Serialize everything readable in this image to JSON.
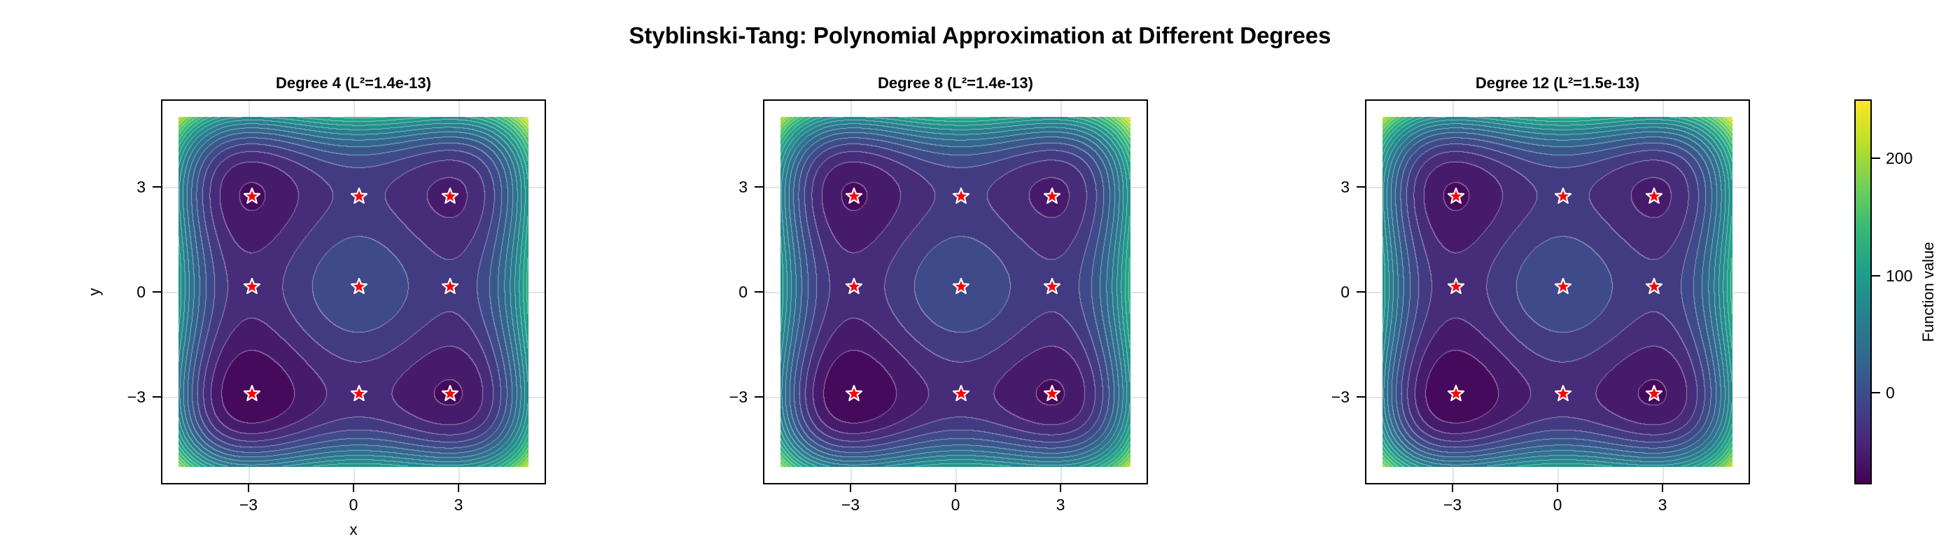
{
  "title": "Styblinski-Tang: Polynomial Approximation at Different Degrees",
  "chart_data": {
    "type": "heatmap",
    "subtype": "filled-contour",
    "title": "Styblinski-Tang: Polynomial Approximation at Different Degrees",
    "function": "f(x,y) = 0.5*((x^4 - 16x^2 + 5x) + (y^4 - 16y^2 + 5y))",
    "domain": {
      "x": [
        -5,
        5
      ],
      "y": [
        -5,
        5
      ]
    },
    "xlim": [
      -5.5,
      5.5
    ],
    "ylim": [
      -5.5,
      5.5
    ],
    "grid": true,
    "contour_levels": 20,
    "colormap": "viridis",
    "colorbar": {
      "label": "Function value",
      "range": [
        -78.3,
        250
      ],
      "ticks": [
        0,
        100,
        200
      ],
      "tick_labels": [
        "0",
        "100",
        "200"
      ]
    },
    "critical_points": {
      "marker": "star",
      "color": "#ff0000",
      "edge_color": "#ffffff",
      "points": [
        [
          -2.9,
          2.75
        ],
        [
          0.16,
          2.75
        ],
        [
          2.75,
          2.75
        ],
        [
          -2.9,
          0.16
        ],
        [
          0.16,
          0.16
        ],
        [
          2.75,
          0.16
        ],
        [
          -2.9,
          -2.9
        ],
        [
          0.16,
          -2.9
        ],
        [
          2.75,
          -2.9
        ]
      ]
    },
    "panels": [
      {
        "degree": 4,
        "title": "Degree 4 (L²=1.4e-13)",
        "l2_error": "1.4e-13",
        "xlabel": "x",
        "ylabel": "y",
        "xticks": [
          -3,
          0,
          3
        ],
        "xtick_labels": [
          "−3",
          "0",
          "3"
        ],
        "yticks": [
          3,
          0,
          -3
        ],
        "ytick_labels": [
          "3",
          "0",
          "−3"
        ]
      },
      {
        "degree": 8,
        "title": "Degree 8 (L²=1.4e-13)",
        "l2_error": "1.4e-13",
        "xlabel": "",
        "ylabel": "",
        "xticks": [
          -3,
          0,
          3
        ],
        "xtick_labels": [
          "−3",
          "0",
          "3"
        ],
        "yticks": [
          3,
          0,
          -3
        ],
        "ytick_labels": [
          "3",
          "0",
          "−3"
        ]
      },
      {
        "degree": 12,
        "title": "Degree 12 (L²=1.5e-13)",
        "l2_error": "1.5e-13",
        "xlabel": "",
        "ylabel": "",
        "xticks": [
          -3,
          0,
          3
        ],
        "xtick_labels": [
          "−3",
          "0",
          "3"
        ],
        "yticks": [
          3,
          0,
          -3
        ],
        "ytick_labels": [
          "3",
          "0",
          "−3"
        ]
      }
    ]
  }
}
